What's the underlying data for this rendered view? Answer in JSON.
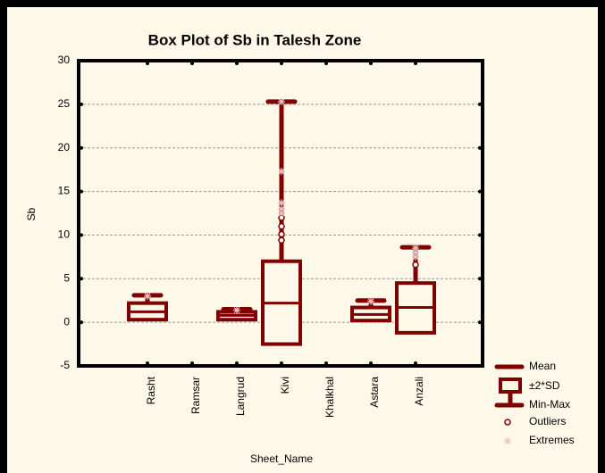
{
  "chart_data": {
    "type": "box",
    "title": "Box Plot of Sb in Talesh Zone",
    "x_label": "Sheet_Name",
    "y_label": "Sb",
    "categories": [
      "Rasht",
      "Ramsar",
      "Langrud",
      "Kivi",
      "Khalkhal",
      "Astara",
      "Anzali"
    ],
    "mean": [
      1.2,
      null,
      0.8,
      2.2,
      null,
      0.9,
      1.7
    ],
    "box_low": [
      0.3,
      null,
      0.3,
      -2.5,
      null,
      0.2,
      -1.2
    ],
    "box_high": [
      2.2,
      null,
      1.2,
      7.0,
      null,
      1.7,
      4.5
    ],
    "min": [
      0.3,
      null,
      0.3,
      0.0,
      null,
      0.2,
      0.0
    ],
    "max": [
      3.1,
      null,
      1.5,
      25.3,
      null,
      2.5,
      8.6
    ],
    "outliers": [
      [],
      [],
      [],
      [
        9.4,
        10.1,
        11.0,
        12.0
      ],
      [],
      [],
      [
        6.6
      ]
    ],
    "extremes": [
      [
        3.0
      ],
      [],
      [
        1.4
      ],
      [
        12.5,
        13.0,
        13.7,
        17.3,
        25.3
      ],
      [],
      [
        2.4
      ],
      [
        7.5,
        8.0,
        8.5
      ]
    ],
    "ylim": [
      -5,
      30
    ],
    "yticks": [
      -5,
      0,
      5,
      10,
      15,
      20,
      25,
      30
    ],
    "grid": true,
    "color": "#800000",
    "legend": [
      "Mean",
      "±2*SD",
      "Min-Max",
      "Outliers",
      "Extremes"
    ]
  }
}
